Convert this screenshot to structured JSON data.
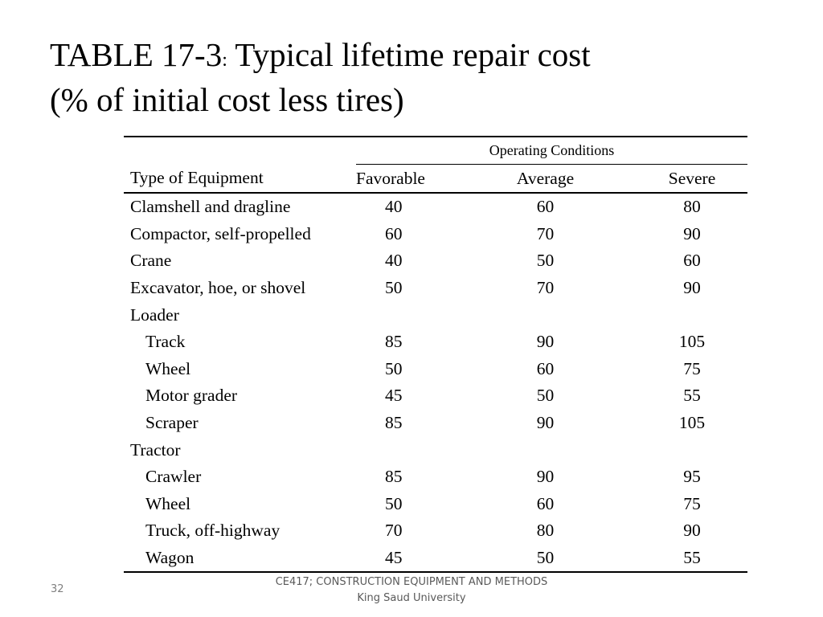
{
  "slide": {
    "title_line1_prefix": "TABLE 17-3",
    "title_colon": ":",
    "title_line1_suffix": " Typical lifetime repair cost",
    "title_line2": "(% of initial cost less tires)",
    "page_number": "32",
    "footer_line1": "CE417; CONSTRUCTION EQUIPMENT AND METHODS",
    "footer_line2": "King Saud University"
  },
  "table": {
    "group_header": "Operating Conditions",
    "columns": [
      "Type of Equipment",
      "Favorable",
      "Average",
      "Severe"
    ],
    "rows": [
      {
        "label": "Clamshell and dragline",
        "indent": false,
        "favorable": "40",
        "average": "60",
        "severe": "80"
      },
      {
        "label": "Compactor, self-propelled",
        "indent": false,
        "favorable": "60",
        "average": "70",
        "severe": "90"
      },
      {
        "label": "Crane",
        "indent": false,
        "favorable": "40",
        "average": "50",
        "severe": "60"
      },
      {
        "label": "Excavator, hoe, or shovel",
        "indent": false,
        "favorable": "50",
        "average": "70",
        "severe": "90"
      },
      {
        "label": "Loader",
        "indent": false,
        "favorable": "",
        "average": "",
        "severe": ""
      },
      {
        "label": "Track",
        "indent": true,
        "favorable": "85",
        "average": "90",
        "severe": "105"
      },
      {
        "label": "Wheel",
        "indent": true,
        "favorable": "50",
        "average": "60",
        "severe": "75"
      },
      {
        "label": "Motor grader",
        "indent": true,
        "favorable": "45",
        "average": "50",
        "severe": "55"
      },
      {
        "label": "Scraper",
        "indent": true,
        "favorable": "85",
        "average": "90",
        "severe": "105"
      },
      {
        "label": "Tractor",
        "indent": false,
        "favorable": "",
        "average": "",
        "severe": ""
      },
      {
        "label": "Crawler",
        "indent": true,
        "favorable": "85",
        "average": "90",
        "severe": "95"
      },
      {
        "label": "Wheel",
        "indent": true,
        "favorable": "50",
        "average": "60",
        "severe": "75"
      },
      {
        "label": "Truck, off-highway",
        "indent": true,
        "favorable": "70",
        "average": "80",
        "severe": "90"
      },
      {
        "label": "Wagon",
        "indent": true,
        "favorable": "45",
        "average": "50",
        "severe": "55"
      }
    ]
  }
}
